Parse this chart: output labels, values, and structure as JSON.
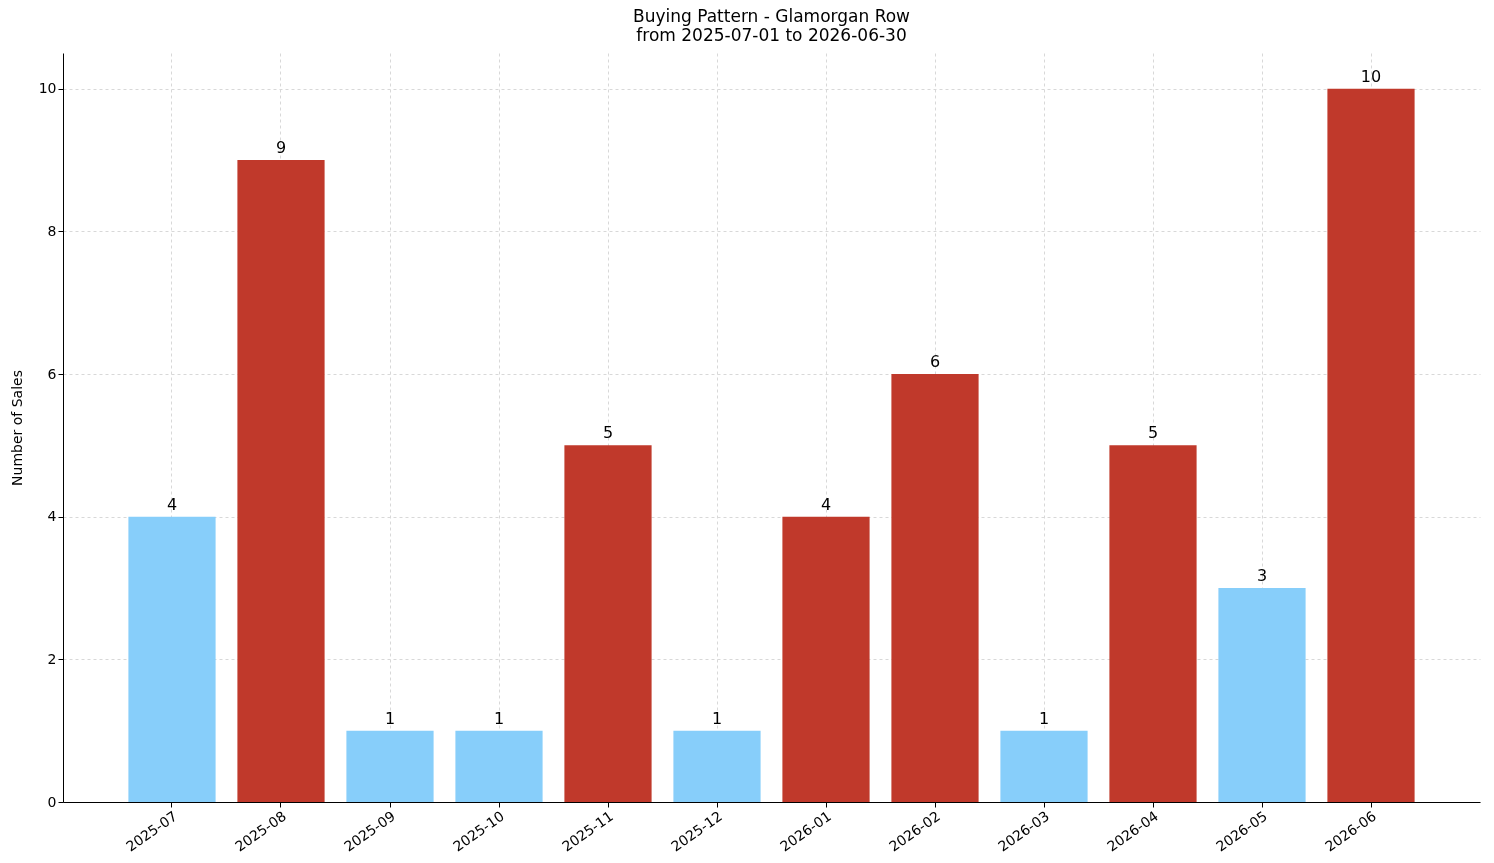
{
  "chart_data": {
    "type": "bar",
    "title": "Buying Pattern - Glamorgan Row",
    "subtitle": "from 2025-07-01 to 2026-06-30",
    "ylabel": "Number of Sales",
    "categories": [
      "2025-07",
      "2025-08",
      "2025-09",
      "2025-10",
      "2025-11",
      "2025-12",
      "2026-01",
      "2026-02",
      "2026-03",
      "2026-04",
      "2026-05",
      "2026-06"
    ],
    "values": [
      4,
      9,
      1,
      1,
      5,
      1,
      4,
      6,
      1,
      5,
      3,
      10
    ],
    "colors": [
      "#87cefa",
      "#c0392b",
      "#87cefa",
      "#87cefa",
      "#c0392b",
      "#87cefa",
      "#c0392b",
      "#c0392b",
      "#87cefa",
      "#c0392b",
      "#87cefa",
      "#c0392b"
    ],
    "ylim": [
      0,
      10.5
    ],
    "yticks": [
      0,
      2,
      4,
      6,
      8,
      10
    ],
    "grid": true,
    "data_labels": true
  }
}
